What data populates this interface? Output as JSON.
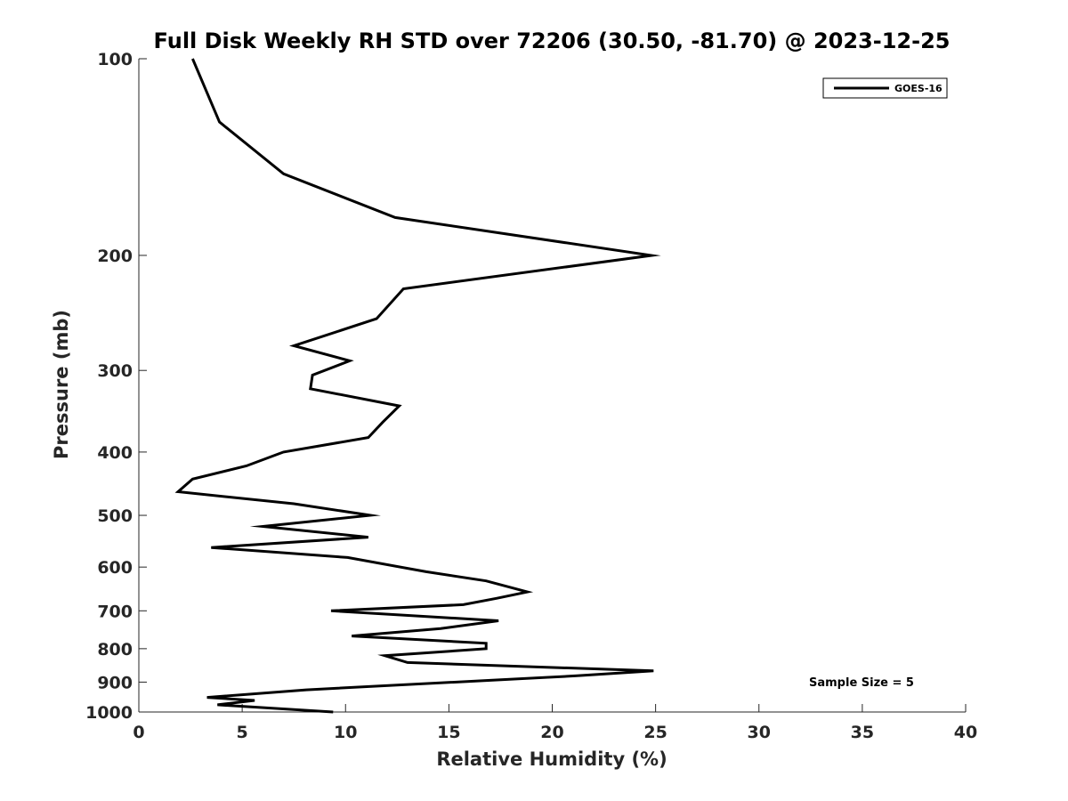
{
  "chart_data": {
    "type": "line",
    "title": "Full Disk Weekly RH STD over 72206 (30.50, -81.70) @ 2023-12-25",
    "xlabel": "Relative Humidity (%)",
    "ylabel": "Pressure (mb)",
    "xlim": [
      0,
      40
    ],
    "ylim": [
      100,
      1000
    ],
    "y_scale": "log",
    "y_reversed": true,
    "x_ticks": [
      0,
      5,
      10,
      15,
      20,
      25,
      30,
      35,
      40
    ],
    "y_ticks": [
      100,
      200,
      300,
      400,
      500,
      600,
      700,
      800,
      900,
      1000
    ],
    "grid": false,
    "legend_position": "top-right",
    "annotation": "Sample Size = 5",
    "series": [
      {
        "name": "GOES-16",
        "color": "#000000",
        "points": [
          [
            2.6,
            100
          ],
          [
            3.9,
            125
          ],
          [
            7.0,
            150
          ],
          [
            12.4,
            175
          ],
          [
            24.8,
            200
          ],
          [
            12.8,
            225
          ],
          [
            11.5,
            250
          ],
          [
            7.5,
            275
          ],
          [
            10.2,
            290
          ],
          [
            8.4,
            305
          ],
          [
            8.3,
            320
          ],
          [
            12.6,
            340
          ],
          [
            11.8,
            360
          ],
          [
            11.1,
            380
          ],
          [
            7.0,
            400
          ],
          [
            5.2,
            420
          ],
          [
            2.6,
            440
          ],
          [
            1.9,
            460
          ],
          [
            7.5,
            480
          ],
          [
            11.2,
            500
          ],
          [
            6.0,
            520
          ],
          [
            11.1,
            540
          ],
          [
            3.5,
            560
          ],
          [
            10.1,
            580
          ],
          [
            13.9,
            610
          ],
          [
            16.8,
            630
          ],
          [
            18.8,
            655
          ],
          [
            17.3,
            670
          ],
          [
            15.7,
            685
          ],
          [
            9.3,
            700
          ],
          [
            17.4,
            725
          ],
          [
            14.6,
            745
          ],
          [
            10.3,
            765
          ],
          [
            16.8,
            785
          ],
          [
            16.8,
            800
          ],
          [
            11.9,
            820
          ],
          [
            13.0,
            840
          ],
          [
            24.9,
            865
          ],
          [
            21.2,
            880
          ],
          [
            8.1,
            925
          ],
          [
            3.3,
            950
          ],
          [
            5.6,
            960
          ],
          [
            3.8,
            975
          ],
          [
            9.4,
            1000
          ]
        ]
      }
    ]
  }
}
